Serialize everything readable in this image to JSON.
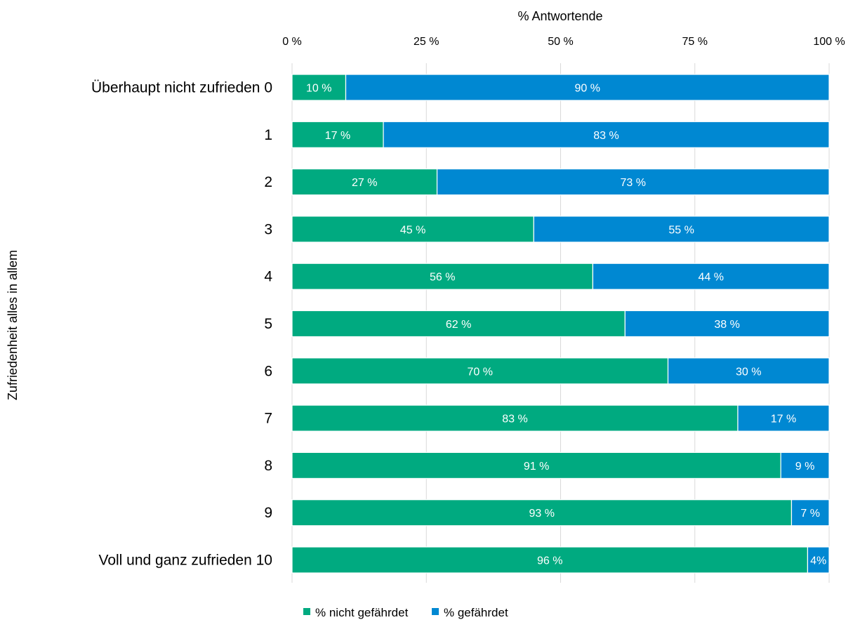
{
  "chart_data": {
    "type": "bar",
    "orientation": "horizontal",
    "stacked": true,
    "xlabel": "% Antwortende",
    "ylabel": "Zufriedenheit alles in allem",
    "xlim": [
      0,
      100
    ],
    "x_ticks": [
      0,
      25,
      50,
      75,
      100
    ],
    "x_tick_labels": [
      "0 %",
      "25 %",
      "50 %",
      "75 %",
      "100 %"
    ],
    "x_axis_position": "top",
    "grid": "vertical",
    "legend_position": "bottom",
    "categories": [
      "Überhaupt nicht zufrieden 0",
      "1",
      "2",
      "3",
      "4",
      "5",
      "6",
      "7",
      "8",
      "9",
      "Voll und ganz zufrieden 10"
    ],
    "series": [
      {
        "name": "% nicht gefährdet",
        "color": "#00AA80",
        "values": [
          10,
          17,
          27,
          45,
          56,
          62,
          70,
          83,
          91,
          93,
          96
        ],
        "labels": [
          "10 %",
          "17 %",
          "27 %",
          "45 %",
          "56 %",
          "62 %",
          "70 %",
          "83 %",
          "91 %",
          "93 %",
          "96 %"
        ]
      },
      {
        "name": "% gefährdet",
        "color": "#0088D2",
        "values": [
          90,
          83,
          73,
          55,
          44,
          38,
          30,
          17,
          9,
          7,
          4
        ],
        "labels": [
          "90 %",
          "83 %",
          "73 %",
          "55 %",
          "44 %",
          "38 %",
          "30 %",
          "17 %",
          "9 %",
          "7 %",
          "4%"
        ]
      }
    ],
    "colors": {
      "grid": "#d9d9d9",
      "bar_label": "#ffffff"
    }
  }
}
